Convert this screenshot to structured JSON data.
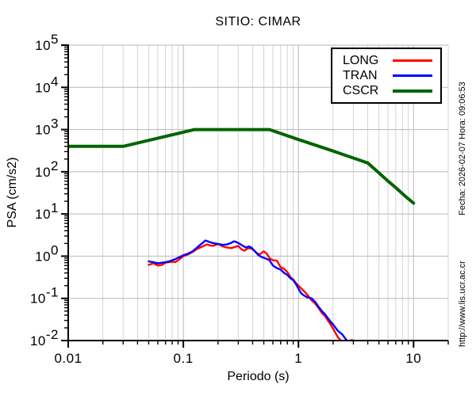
{
  "right_margin": {
    "top_text": "Fecha: 2026-02-07  Hora: 09:06:53",
    "bottom_text": "http://www.lis.ucr.ac.cr"
  },
  "chart_data": {
    "type": "line",
    "title": "SITIO: CIMAR",
    "xlabel": "Periodo (s)",
    "ylabel": "PSA (cm/s2)",
    "x_scale": "log",
    "y_scale": "log",
    "xlim": [
      0.01,
      20
    ],
    "ylim": [
      0.01,
      100000
    ],
    "x_ticks": [
      0.01,
      0.1,
      1,
      10
    ],
    "x_tick_labels": [
      "0.01",
      "0.1",
      "1",
      "10"
    ],
    "y_tick_exponents": [
      -2,
      -1,
      0,
      1,
      2,
      3,
      4,
      5
    ],
    "grid": true,
    "grid_major_color": "#b8b8b8",
    "grid_minor_color": "#d4d4d4",
    "axis_color": "#000000",
    "legend_position": "top-right",
    "series": [
      {
        "name": "LONG",
        "color": "#ff0000",
        "width": 2.4,
        "points": [
          [
            0.05,
            0.62
          ],
          [
            0.055,
            0.68
          ],
          [
            0.06,
            0.6
          ],
          [
            0.065,
            0.62
          ],
          [
            0.07,
            0.7
          ],
          [
            0.075,
            0.72
          ],
          [
            0.08,
            0.74
          ],
          [
            0.085,
            0.72
          ],
          [
            0.09,
            0.8
          ],
          [
            0.1,
            1.0
          ],
          [
            0.11,
            1.1
          ],
          [
            0.12,
            1.25
          ],
          [
            0.13,
            1.45
          ],
          [
            0.14,
            1.6
          ],
          [
            0.15,
            1.75
          ],
          [
            0.16,
            1.9
          ],
          [
            0.17,
            1.8
          ],
          [
            0.18,
            1.75
          ],
          [
            0.19,
            1.85
          ],
          [
            0.2,
            1.95
          ],
          [
            0.22,
            1.7
          ],
          [
            0.24,
            1.6
          ],
          [
            0.26,
            1.55
          ],
          [
            0.28,
            1.65
          ],
          [
            0.3,
            1.75
          ],
          [
            0.32,
            1.45
          ],
          [
            0.34,
            1.35
          ],
          [
            0.36,
            1.5
          ],
          [
            0.38,
            1.55
          ],
          [
            0.4,
            1.45
          ],
          [
            0.43,
            1.2
          ],
          [
            0.46,
            1.1
          ],
          [
            0.5,
            1.3
          ],
          [
            0.53,
            1.15
          ],
          [
            0.56,
            0.9
          ],
          [
            0.6,
            0.8
          ],
          [
            0.65,
            0.78
          ],
          [
            0.7,
            0.55
          ],
          [
            0.75,
            0.5
          ],
          [
            0.8,
            0.42
          ],
          [
            0.85,
            0.32
          ],
          [
            0.9,
            0.28
          ],
          [
            0.95,
            0.23
          ],
          [
            1.0,
            0.2
          ],
          [
            1.1,
            0.155
          ],
          [
            1.2,
            0.12
          ],
          [
            1.3,
            0.09
          ],
          [
            1.4,
            0.075
          ],
          [
            1.5,
            0.058
          ],
          [
            1.6,
            0.045
          ],
          [
            1.7,
            0.038
          ],
          [
            1.8,
            0.03
          ],
          [
            1.9,
            0.024
          ],
          [
            2.0,
            0.019
          ],
          [
            2.1,
            0.015
          ],
          [
            2.2,
            0.012
          ],
          [
            2.3,
            0.0105
          ],
          [
            2.45,
            0.009
          ],
          [
            2.6,
            0.0075
          ],
          [
            2.85,
            0.0102
          ],
          [
            3.0,
            0.0101
          ],
          [
            3.1,
            0.0085
          ]
        ]
      },
      {
        "name": "TRAN",
        "color": "#0000ff",
        "width": 2.4,
        "points": [
          [
            0.05,
            0.75
          ],
          [
            0.055,
            0.72
          ],
          [
            0.06,
            0.68
          ],
          [
            0.065,
            0.7
          ],
          [
            0.07,
            0.72
          ],
          [
            0.075,
            0.75
          ],
          [
            0.08,
            0.8
          ],
          [
            0.085,
            0.85
          ],
          [
            0.09,
            0.92
          ],
          [
            0.1,
            1.05
          ],
          [
            0.11,
            1.15
          ],
          [
            0.12,
            1.3
          ],
          [
            0.13,
            1.55
          ],
          [
            0.14,
            1.85
          ],
          [
            0.15,
            2.15
          ],
          [
            0.155,
            2.35
          ],
          [
            0.16,
            2.3
          ],
          [
            0.17,
            2.15
          ],
          [
            0.18,
            2.05
          ],
          [
            0.19,
            2.0
          ],
          [
            0.2,
            1.95
          ],
          [
            0.22,
            1.85
          ],
          [
            0.24,
            1.9
          ],
          [
            0.26,
            2.05
          ],
          [
            0.275,
            2.25
          ],
          [
            0.29,
            2.15
          ],
          [
            0.31,
            1.95
          ],
          [
            0.33,
            1.75
          ],
          [
            0.35,
            1.6
          ],
          [
            0.37,
            1.7
          ],
          [
            0.39,
            1.6
          ],
          [
            0.42,
            1.3
          ],
          [
            0.45,
            1.05
          ],
          [
            0.48,
            0.95
          ],
          [
            0.52,
            0.88
          ],
          [
            0.56,
            0.8
          ],
          [
            0.6,
            0.6
          ],
          [
            0.65,
            0.52
          ],
          [
            0.7,
            0.48
          ],
          [
            0.75,
            0.4
          ],
          [
            0.8,
            0.36
          ],
          [
            0.85,
            0.3
          ],
          [
            0.9,
            0.27
          ],
          [
            0.95,
            0.22
          ],
          [
            1.0,
            0.17
          ],
          [
            1.05,
            0.135
          ],
          [
            1.1,
            0.12
          ],
          [
            1.2,
            0.105
          ],
          [
            1.3,
            0.1
          ],
          [
            1.4,
            0.082
          ],
          [
            1.5,
            0.062
          ],
          [
            1.6,
            0.05
          ],
          [
            1.7,
            0.042
          ],
          [
            1.8,
            0.034
          ],
          [
            1.9,
            0.028
          ],
          [
            2.0,
            0.024
          ],
          [
            2.1,
            0.02
          ],
          [
            2.2,
            0.017
          ],
          [
            2.4,
            0.014
          ],
          [
            2.5,
            0.012
          ],
          [
            2.6,
            0.0105
          ],
          [
            2.7,
            0.0092
          ]
        ]
      },
      {
        "name": "CSCR",
        "color": "#006400",
        "width": 4,
        "points": [
          [
            0.01,
            400
          ],
          [
            0.03,
            400
          ],
          [
            0.125,
            1000
          ],
          [
            0.56,
            1000
          ],
          [
            1.0,
            580
          ],
          [
            1.5,
            402
          ],
          [
            2.0,
            309
          ],
          [
            2.5,
            251
          ],
          [
            3.0,
            212
          ],
          [
            3.5,
            183
          ],
          [
            4.0,
            161
          ],
          [
            5.0,
            94
          ],
          [
            6.0,
            60
          ],
          [
            7.0,
            42
          ],
          [
            8.5,
            26
          ],
          [
            10.0,
            18
          ]
        ]
      }
    ]
  }
}
